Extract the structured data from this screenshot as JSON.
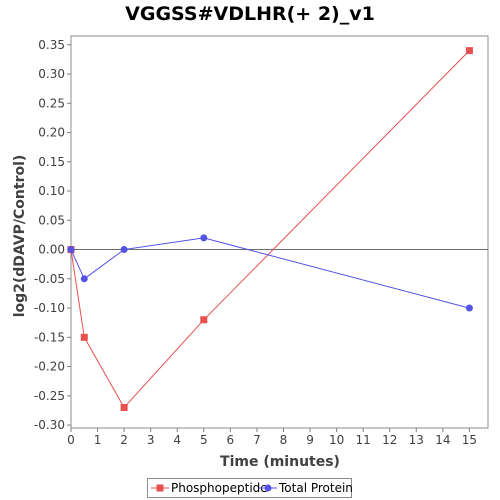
{
  "chart_data": {
    "type": "line",
    "title": "VGGSS#VDLHR(+ 2)_v1",
    "xlabel": "Time (minutes)",
    "ylabel": "log2(dDAVP/Control)",
    "xlim": [
      0,
      15.7
    ],
    "ylim": [
      -0.305,
      0.365
    ],
    "x_ticks": [
      0,
      1,
      2,
      3,
      4,
      5,
      6,
      7,
      8,
      9,
      10,
      11,
      12,
      13,
      14,
      15
    ],
    "x_tick_labels": [
      "0",
      "1",
      "2",
      "3",
      "4",
      "5",
      "6",
      "7",
      "8",
      "9",
      "10",
      "11",
      "12",
      "13",
      "14",
      "15"
    ],
    "y_ticks": [
      0.35,
      0.3,
      0.25,
      0.2,
      0.15,
      0.1,
      0.05,
      0.0,
      -0.05,
      -0.1,
      -0.15,
      -0.2,
      -0.25,
      -0.3
    ],
    "y_tick_labels": [
      "0.35",
      "0.30",
      "0.25",
      "0.20",
      "0.15",
      "0.10",
      "0.05",
      "0.00",
      "-0.05",
      "-0.10",
      "-0.15",
      "-0.20",
      "-0.25",
      "-0.30"
    ],
    "zero_line": true,
    "grid": false,
    "legend_position": "bottom",
    "series": [
      {
        "name": "Phosphopeptide",
        "color": "#e8504f",
        "marker": "square",
        "x": [
          0,
          0.5,
          2,
          5,
          15
        ],
        "y": [
          0.0,
          -0.15,
          -0.27,
          -0.12,
          0.34
        ]
      },
      {
        "name": "Total Protein",
        "color": "#5353e6",
        "marker": "circle",
        "x": [
          0,
          0.5,
          2,
          5,
          15
        ],
        "y": [
          0.0,
          -0.05,
          0.0,
          0.02,
          -0.1
        ]
      }
    ]
  }
}
